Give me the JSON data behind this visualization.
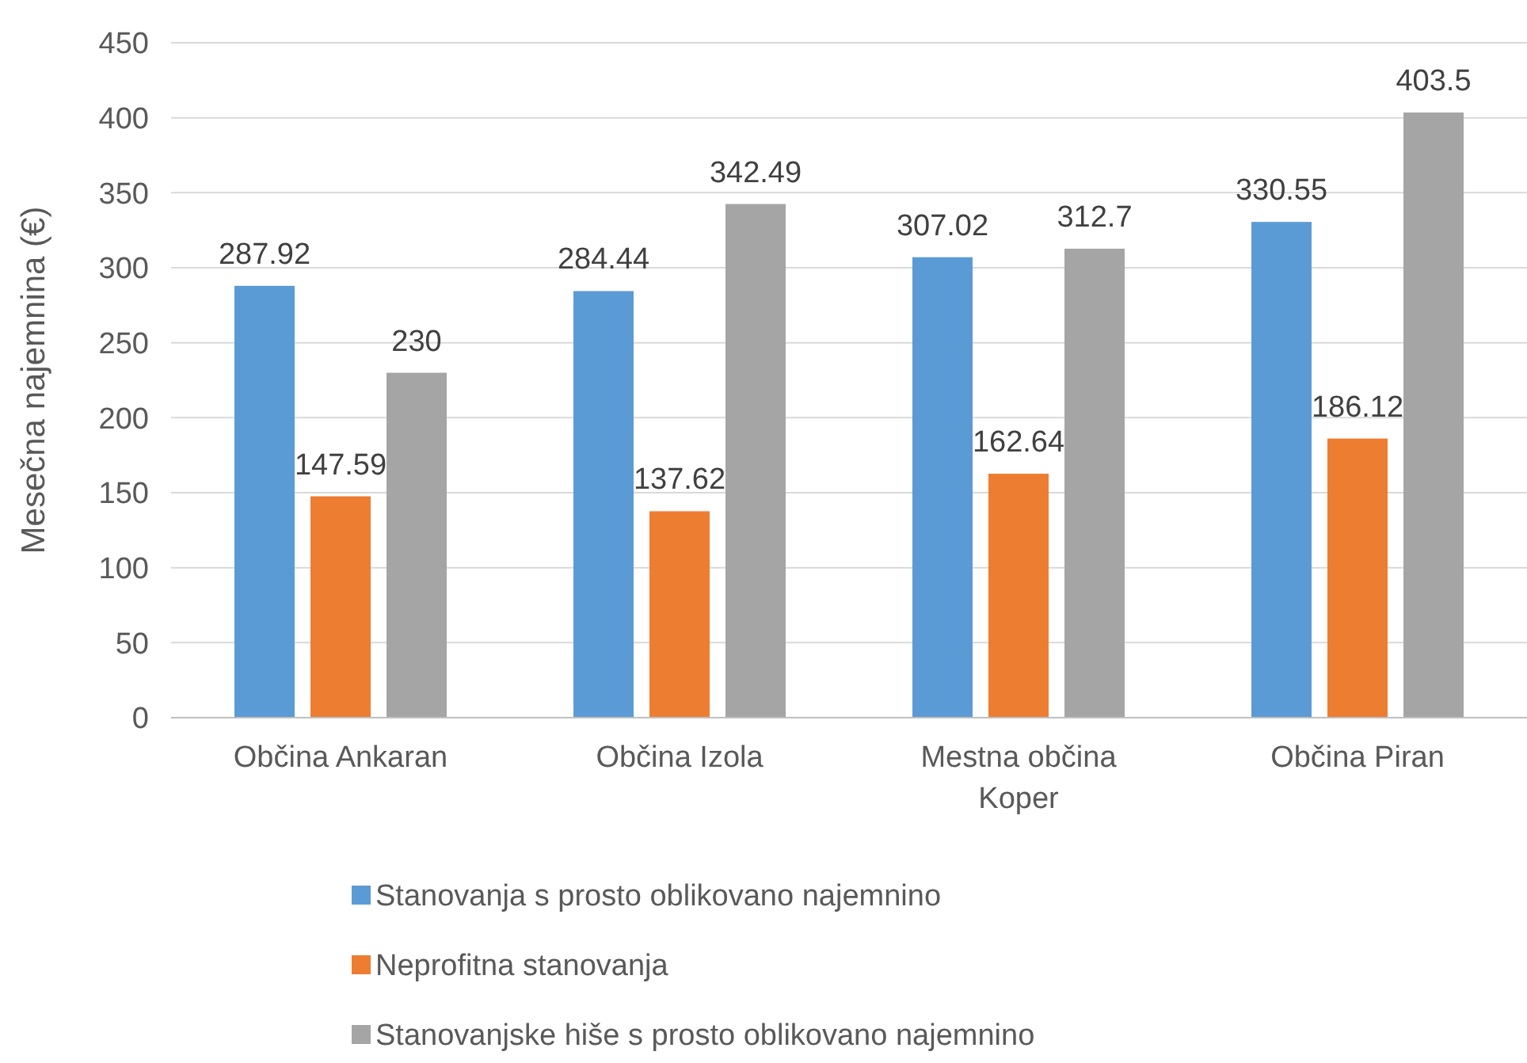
{
  "chart_data": {
    "type": "bar",
    "ylabel": "Mesečna najemnina (€)",
    "categories": [
      "Občina Ankaran",
      "Občina Izola",
      "Mestna občina Koper",
      "Občina Piran"
    ],
    "series": [
      {
        "name": "Stanovanja s prosto oblikovano najemnino",
        "color": "#5b9bd5",
        "values": [
          287.92,
          284.44,
          307.02,
          330.55
        ]
      },
      {
        "name": "Neprofitna stanovanja",
        "color": "#ed7d31",
        "values": [
          147.59,
          137.62,
          162.64,
          186.12
        ]
      },
      {
        "name": "Stanovanjske hiše s prosto oblikovano najemnino",
        "color": "#a5a5a5",
        "values": [
          230,
          342.49,
          312.7,
          403.5
        ]
      }
    ],
    "ylim": [
      0,
      450
    ],
    "yticks": [
      0,
      50,
      100,
      150,
      200,
      250,
      300,
      350,
      400,
      450
    ],
    "grid": "y",
    "data_labels": true,
    "legend": "bottom"
  }
}
